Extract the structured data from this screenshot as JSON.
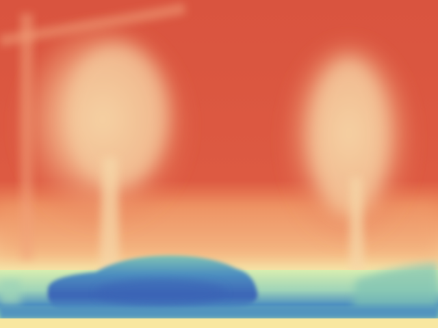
{
  "image": {
    "kind": "depth-map",
    "colormap": "Spectral",
    "description_visible_text": []
  },
  "colors": {
    "far_red": "#d9543f",
    "far_red_light": "#e46a4a",
    "mid_orange": "#f0a070",
    "near_peach": "#f7caa0",
    "foliage_cream": "#f6d7a8",
    "ground_yellow": "#f3f0b0",
    "light_green": "#d8eeb0",
    "teal": "#7fc3b3",
    "mid_blue": "#4d8fc0",
    "deep_blue": "#3b63b6",
    "front_yellow": "#f8e7a0"
  }
}
